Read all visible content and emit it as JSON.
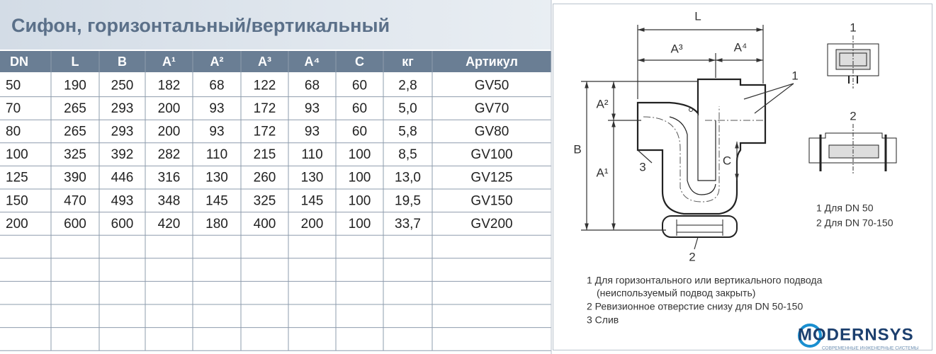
{
  "title": "Сифон, горизонтальный/вертикальный",
  "table": {
    "headers": [
      "DN",
      "L",
      "B",
      "A¹",
      "A²",
      "A³",
      "A⁴",
      "C",
      "кг",
      "Артикул"
    ],
    "rows": [
      [
        "50",
        "190",
        "250",
        "182",
        "68",
        "122",
        "68",
        "60",
        "2,8",
        "GV50"
      ],
      [
        "70",
        "265",
        "293",
        "200",
        "93",
        "172",
        "93",
        "60",
        "5,0",
        "GV70"
      ],
      [
        "80",
        "265",
        "293",
        "200",
        "93",
        "172",
        "93",
        "60",
        "5,8",
        "GV80"
      ],
      [
        "100",
        "325",
        "392",
        "282",
        "110",
        "215",
        "110",
        "100",
        "8,5",
        "GV100"
      ],
      [
        "125",
        "390",
        "446",
        "316",
        "130",
        "260",
        "130",
        "100",
        "13,0",
        "GV125"
      ],
      [
        "150",
        "470",
        "493",
        "348",
        "145",
        "325",
        "145",
        "100",
        "19,5",
        "GV150"
      ],
      [
        "200",
        "600",
        "600",
        "420",
        "180",
        "400",
        "200",
        "100",
        "33,7",
        "GV200"
      ]
    ]
  },
  "diagram": {
    "labels": {
      "L": "L",
      "A3": "A³",
      "A4": "A⁴",
      "callout1": "1",
      "A2": "A²",
      "B": "B",
      "A1": "A¹",
      "callout3": "3",
      "C": "C",
      "callout2": "2"
    },
    "detail_1": "1",
    "detail_2": "2",
    "legend": [
      "1 Для DN 50",
      "2 Для DN 70-150"
    ],
    "notes": [
      "1 Для горизонтального или вертикального подвода",
      "(неиспользуемый подвод закрыть)",
      "2 Ревизионное отверстие снизу для DN 50-150",
      "3 Слив"
    ]
  },
  "logo": {
    "name": "MODERNSYS",
    "tagline": "СОВРЕМЕННЫЕ ИНЖЕНЕРНЫЕ СИСТЕМЫ"
  }
}
